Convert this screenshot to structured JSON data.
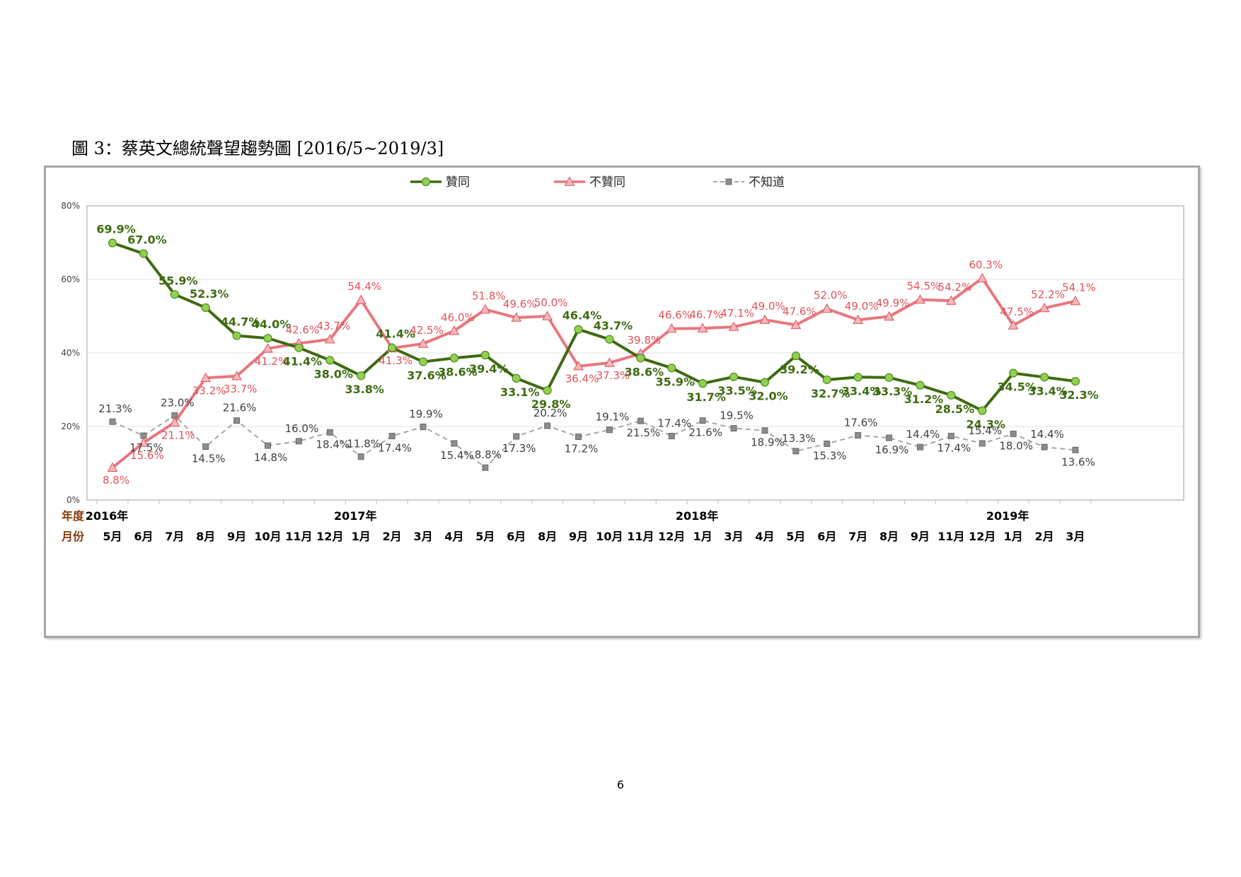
{
  "page": {
    "title": "圖 3：蔡英文總統聲望趨勢圖  [2016/5~2019/3]",
    "page_number": "6"
  },
  "chart_data": {
    "type": "line",
    "ylim": [
      0,
      80
    ],
    "y_ticks": [
      "0%",
      "20%",
      "40%",
      "60%",
      "80%"
    ],
    "y_tick_values": [
      0,
      20,
      40,
      60,
      80
    ],
    "grid": true,
    "legend_position": "top",
    "row_labels": {
      "year": "年度",
      "month": "月份"
    },
    "year_labels": [
      {
        "index": 0,
        "label": "2016年"
      },
      {
        "index": 8,
        "label": "2017年"
      },
      {
        "index": 19,
        "label": "2018年"
      },
      {
        "index": 29,
        "label": "2019年"
      }
    ],
    "categories": [
      "5月",
      "6月",
      "7月",
      "8月",
      "9月",
      "10月",
      "11月",
      "12月",
      "1月",
      "2月",
      "3月",
      "4月",
      "5月",
      "6月",
      "8月",
      "9月",
      "10月",
      "11月",
      "12月",
      "1月",
      "3月",
      "4月",
      "5月",
      "6月",
      "7月",
      "8月",
      "9月",
      "11月",
      "12月",
      "1月",
      "2月",
      "3月"
    ],
    "series": [
      {
        "name": "贊同",
        "color": "#3d6b11",
        "marker": "circle",
        "marker_color": "#92d050",
        "label_color": "#3d6b11",
        "values": [
          69.9,
          67.0,
          55.9,
          52.3,
          44.7,
          44.0,
          41.4,
          38.0,
          33.8,
          41.4,
          37.6,
          38.6,
          39.4,
          33.1,
          29.8,
          46.4,
          43.7,
          38.6,
          35.9,
          31.7,
          33.5,
          32.0,
          39.2,
          32.7,
          33.4,
          33.3,
          31.2,
          28.5,
          24.3,
          34.5,
          33.4,
          32.3
        ],
        "labels": [
          "69.9%",
          "67.0%",
          "55.9%",
          "52.3%",
          "44.7%",
          "44.0%",
          "41.4%",
          "38.0%",
          "33.8%",
          "41.4%",
          "37.6%",
          "38.6%",
          "39.4%",
          "33.1%",
          "29.8%",
          "46.4%",
          "43.7%",
          "38.6%",
          "35.9%",
          "31.7%",
          "33.5%",
          "32.0%",
          "39.2%",
          "32.7%",
          "33.4%",
          "33.3%",
          "31.2%",
          "28.5%",
          "24.3%",
          "34.5%",
          "33.4%",
          "32.3%"
        ]
      },
      {
        "name": "不贊同",
        "color": "#e8777d",
        "marker": "triangle",
        "marker_color": "#f4b8bb",
        "label_color": "#e0525a",
        "values": [
          8.8,
          15.6,
          21.1,
          33.2,
          33.7,
          41.2,
          42.6,
          43.7,
          54.4,
          41.3,
          42.5,
          46.0,
          51.8,
          49.6,
          50.0,
          36.4,
          37.3,
          39.8,
          46.6,
          46.7,
          47.1,
          49.0,
          47.6,
          52.0,
          49.0,
          49.9,
          54.5,
          54.2,
          60.3,
          47.5,
          52.2,
          54.1
        ],
        "labels": [
          "8.8%",
          "15.6%",
          "21.1%",
          "33.2%",
          "33.7%",
          "41.2%",
          "42.6%",
          "43.7%",
          "54.4%",
          "41.3%",
          "42.5%",
          "46.0%",
          "51.8%",
          "49.6%",
          "50.0%",
          "36.4%",
          "37.3%",
          "39.8%",
          "46.6%",
          "46.7%",
          "47.1%",
          "49.0%",
          "47.6%",
          "52.0%",
          "49.0%",
          "49.9%",
          "54.5%",
          "54.2%",
          "60.3%",
          "47.5%",
          "52.2%",
          "54.1%"
        ]
      },
      {
        "name": "不知道",
        "color": "#a6a6a6",
        "marker": "square",
        "marker_color": "#8c8c8c",
        "label_color": "#404040",
        "dashed": true,
        "values": [
          21.3,
          17.5,
          23.0,
          14.5,
          21.6,
          14.8,
          16.0,
          18.4,
          11.8,
          17.4,
          19.9,
          15.4,
          8.8,
          17.3,
          20.2,
          17.2,
          19.1,
          21.5,
          17.4,
          21.6,
          19.5,
          18.9,
          13.3,
          15.3,
          17.6,
          16.9,
          14.4,
          17.4,
          15.4,
          18.0,
          14.4,
          13.6
        ],
        "labels": [
          "21.3%",
          "17.5%",
          "23.0%",
          "14.5%",
          "21.6%",
          "14.8%",
          "16.0%",
          "18.4%",
          "11.8%",
          "17.4%",
          "19.9%",
          "15.4%",
          "8.8%",
          "17.3%",
          "20.2%",
          "17.2%",
          "19.1%",
          "21.5%",
          "17.4%",
          "21.6%",
          "19.5%",
          "18.9%",
          "13.3%",
          "15.3%",
          "17.6%",
          "16.9%",
          "14.4%",
          "17.4%",
          "15.4%",
          "18.0%",
          "14.4%",
          "13.6%"
        ]
      }
    ]
  }
}
